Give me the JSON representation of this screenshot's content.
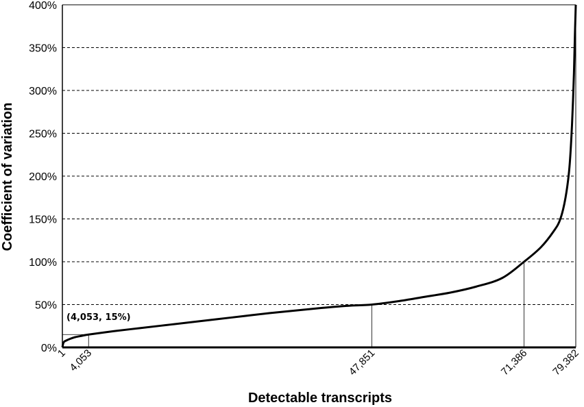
{
  "chart_data": {
    "type": "line",
    "title": "",
    "xlabel": "Detectable transcripts",
    "ylabel": "Coefficient of variation",
    "xlim": [
      1,
      79382
    ],
    "ylim": [
      0,
      400
    ],
    "y_ticks": [
      "0%",
      "50%",
      "100%",
      "150%",
      "200%",
      "250%",
      "300%",
      "350%",
      "400%"
    ],
    "x_ticks": [
      "1",
      "4,053",
      "47,851",
      "71,386",
      "79,382"
    ],
    "x_tick_values": [
      1,
      4053,
      47851,
      71386,
      79382
    ],
    "grid": "horizontal dashed",
    "legend": "none",
    "annotation": {
      "text": "(4,053, 15%)",
      "x": 4053,
      "y": 15
    },
    "markers": [
      {
        "x": 4053,
        "y": 15
      },
      {
        "x": 47851,
        "y": 50
      },
      {
        "x": 71386,
        "y": 100
      }
    ],
    "series": [
      {
        "x": [
          1,
          200,
          600,
          1200,
          2000,
          3000,
          4053,
          8000,
          12000,
          16000,
          20000,
          24000,
          28000,
          32000,
          36000,
          40000,
          44000,
          47851,
          52000,
          56000,
          60000,
          64000,
          68000,
          71386,
          74000,
          76000,
          77000,
          77800,
          78400,
          78800,
          79100,
          79250,
          79382
        ],
        "values": [
          0,
          6,
          8,
          10,
          12,
          13.5,
          15,
          19,
          22.5,
          26,
          29.5,
          33,
          36.5,
          40,
          43,
          46,
          48.5,
          50,
          54,
          59,
          64,
          71,
          81,
          100,
          117,
          136,
          150,
          175,
          210,
          260,
          320,
          365,
          400
        ]
      }
    ],
    "colors": {
      "line": "#000000",
      "grid": "#000000"
    }
  }
}
